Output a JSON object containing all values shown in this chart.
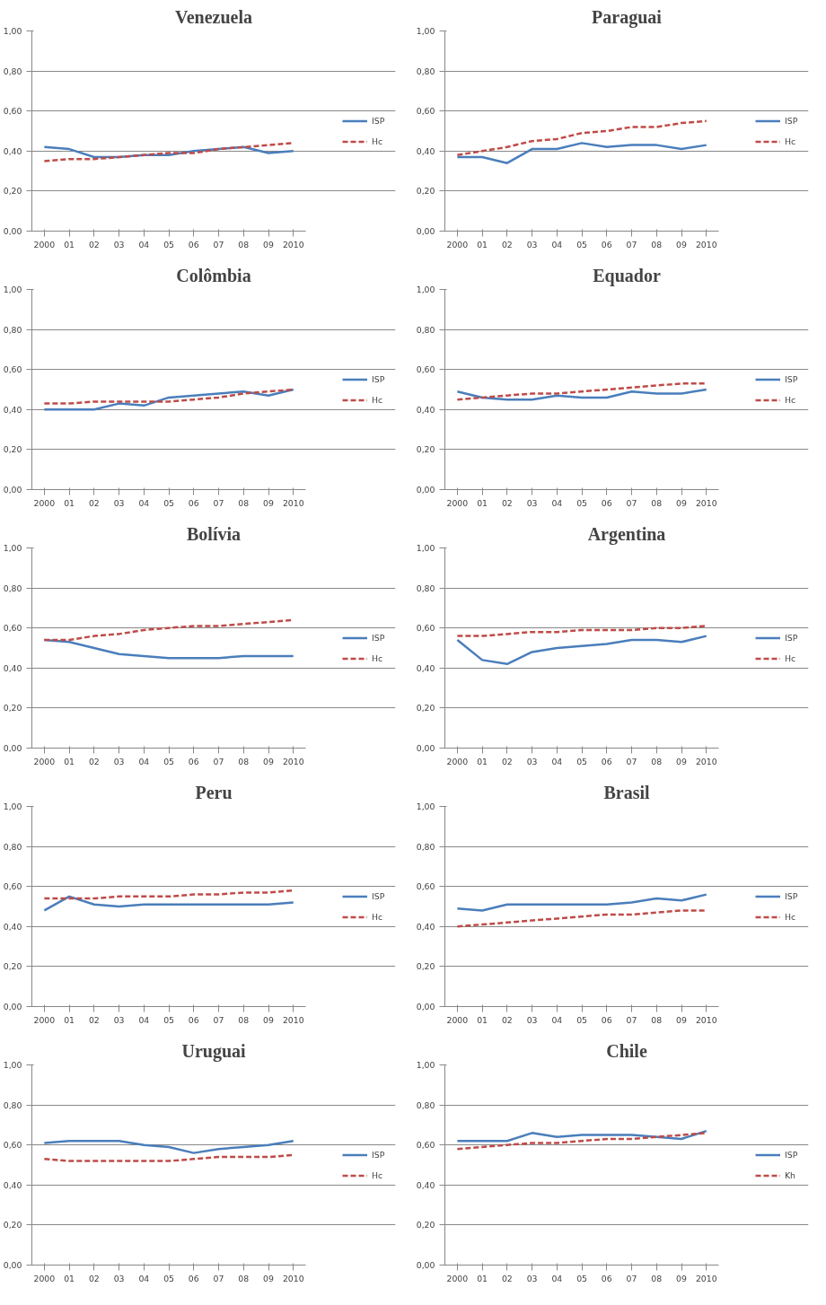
{
  "chart_data": [
    {
      "type": "line",
      "title": "Venezuela",
      "categories": [
        "2000",
        "01",
        "02",
        "03",
        "04",
        "05",
        "06",
        "07",
        "08",
        "09",
        "2010"
      ],
      "ylim": [
        0,
        1
      ],
      "yticks": [
        {
          "value": 0,
          "label": "0,00"
        },
        {
          "value": 0.2,
          "label": "0,20"
        },
        {
          "value": 0.4,
          "label": "0,40"
        },
        {
          "value": 0.6,
          "label": "0,60"
        },
        {
          "value": 0.8,
          "label": "0,80"
        },
        {
          "value": 1,
          "label": "1,00"
        }
      ],
      "grid": "y",
      "legend": "right",
      "series": [
        {
          "name": "ISP",
          "color": "#4a7ebb",
          "line_style": "solid",
          "values": [
            0.42,
            0.41,
            0.37,
            0.37,
            0.38,
            0.38,
            0.4,
            0.41,
            0.42,
            0.39,
            0.4
          ]
        },
        {
          "name": "Hc",
          "color": "#be4b48",
          "line_style": "dashed",
          "values": [
            0.35,
            0.36,
            0.36,
            0.37,
            0.38,
            0.39,
            0.39,
            0.41,
            0.42,
            0.43,
            0.44
          ]
        }
      ]
    },
    {
      "type": "line",
      "title": "Paraguai",
      "categories": [
        "2000",
        "01",
        "02",
        "03",
        "04",
        "05",
        "06",
        "07",
        "08",
        "09",
        "2010"
      ],
      "ylim": [
        0,
        1
      ],
      "yticks": [
        {
          "value": 0,
          "label": "0,00"
        },
        {
          "value": 0.2,
          "label": "0,20"
        },
        {
          "value": 0.4,
          "label": "0,40"
        },
        {
          "value": 0.6,
          "label": "0,60"
        },
        {
          "value": 0.8,
          "label": "0,80"
        },
        {
          "value": 1,
          "label": "1,00"
        }
      ],
      "grid": "y",
      "legend": "right",
      "series": [
        {
          "name": "ISP",
          "color": "#4a7ebb",
          "line_style": "solid",
          "values": [
            0.37,
            0.37,
            0.34,
            0.41,
            0.41,
            0.44,
            0.42,
            0.43,
            0.43,
            0.41,
            0.43
          ]
        },
        {
          "name": "Hc",
          "color": "#be4b48",
          "line_style": "dashed",
          "values": [
            0.38,
            0.4,
            0.42,
            0.45,
            0.46,
            0.49,
            0.5,
            0.52,
            0.52,
            0.54,
            0.55
          ]
        }
      ]
    },
    {
      "type": "line",
      "title": "Colômbia",
      "categories": [
        "2000",
        "01",
        "02",
        "03",
        "04",
        "05",
        "06",
        "07",
        "08",
        "09",
        "2010"
      ],
      "ylim": [
        0,
        1
      ],
      "yticks": [
        {
          "value": 0,
          "label": "0,00"
        },
        {
          "value": 0.2,
          "label": "0,20"
        },
        {
          "value": 0.4,
          "label": "0,40"
        },
        {
          "value": 0.6,
          "label": "0,60"
        },
        {
          "value": 0.8,
          "label": "0,80"
        },
        {
          "value": 1,
          "label": "1,00"
        }
      ],
      "grid": "y",
      "legend": "right",
      "series": [
        {
          "name": "ISP",
          "color": "#4a7ebb",
          "line_style": "solid",
          "values": [
            0.4,
            0.4,
            0.4,
            0.43,
            0.42,
            0.46,
            0.47,
            0.48,
            0.49,
            0.47,
            0.5
          ]
        },
        {
          "name": "Hc",
          "color": "#be4b48",
          "line_style": "dashed",
          "values": [
            0.43,
            0.43,
            0.44,
            0.44,
            0.44,
            0.44,
            0.45,
            0.46,
            0.48,
            0.49,
            0.5
          ]
        }
      ]
    },
    {
      "type": "line",
      "title": "Equador",
      "categories": [
        "2000",
        "01",
        "02",
        "03",
        "04",
        "05",
        "06",
        "07",
        "08",
        "09",
        "2010"
      ],
      "ylim": [
        0,
        1
      ],
      "yticks": [
        {
          "value": 0,
          "label": "0,00"
        },
        {
          "value": 0.2,
          "label": "0,20"
        },
        {
          "value": 0.4,
          "label": "0,40"
        },
        {
          "value": 0.6,
          "label": "0,60"
        },
        {
          "value": 0.8,
          "label": "0,80"
        },
        {
          "value": 1,
          "label": "1,00"
        }
      ],
      "grid": "y",
      "legend": "right",
      "series": [
        {
          "name": "ISP",
          "color": "#4a7ebb",
          "line_style": "solid",
          "values": [
            0.49,
            0.46,
            0.45,
            0.45,
            0.47,
            0.46,
            0.46,
            0.49,
            0.48,
            0.48,
            0.5
          ]
        },
        {
          "name": "Hc",
          "color": "#be4b48",
          "line_style": "dashed",
          "values": [
            0.45,
            0.46,
            0.47,
            0.48,
            0.48,
            0.49,
            0.5,
            0.51,
            0.52,
            0.53,
            0.53
          ]
        }
      ]
    },
    {
      "type": "line",
      "title": "Bolívia",
      "categories": [
        "2000",
        "01",
        "02",
        "03",
        "04",
        "05",
        "06",
        "07",
        "08",
        "09",
        "2010"
      ],
      "ylim": [
        0,
        1
      ],
      "yticks": [
        {
          "value": 0,
          "label": "0,00"
        },
        {
          "value": 0.2,
          "label": "0,20"
        },
        {
          "value": 0.4,
          "label": "0,40"
        },
        {
          "value": 0.6,
          "label": "0,60"
        },
        {
          "value": 0.8,
          "label": "0,80"
        },
        {
          "value": 1,
          "label": "1,00"
        }
      ],
      "grid": "y",
      "legend": "right",
      "series": [
        {
          "name": "ISP",
          "color": "#4a7ebb",
          "line_style": "solid",
          "values": [
            0.54,
            0.53,
            0.5,
            0.47,
            0.46,
            0.45,
            0.45,
            0.45,
            0.46,
            0.46,
            0.46
          ]
        },
        {
          "name": "Hc",
          "color": "#be4b48",
          "line_style": "dashed",
          "values": [
            0.54,
            0.54,
            0.56,
            0.57,
            0.59,
            0.6,
            0.61,
            0.61,
            0.62,
            0.63,
            0.64
          ]
        }
      ]
    },
    {
      "type": "line",
      "title": "Argentina",
      "categories": [
        "2000",
        "01",
        "02",
        "03",
        "04",
        "05",
        "06",
        "07",
        "08",
        "09",
        "2010"
      ],
      "ylim": [
        0,
        1
      ],
      "yticks": [
        {
          "value": 0,
          "label": "0,00"
        },
        {
          "value": 0.2,
          "label": "0,20"
        },
        {
          "value": 0.4,
          "label": "0,40"
        },
        {
          "value": 0.6,
          "label": "0,60"
        },
        {
          "value": 0.8,
          "label": "0,80"
        },
        {
          "value": 1,
          "label": "1,00"
        }
      ],
      "grid": "y",
      "legend": "right",
      "series": [
        {
          "name": "ISP",
          "color": "#4a7ebb",
          "line_style": "solid",
          "values": [
            0.54,
            0.44,
            0.42,
            0.48,
            0.5,
            0.51,
            0.52,
            0.54,
            0.54,
            0.53,
            0.56
          ]
        },
        {
          "name": "Hc",
          "color": "#be4b48",
          "line_style": "dashed",
          "values": [
            0.56,
            0.56,
            0.57,
            0.58,
            0.58,
            0.59,
            0.59,
            0.59,
            0.6,
            0.6,
            0.61
          ]
        }
      ]
    },
    {
      "type": "line",
      "title": "Peru",
      "categories": [
        "2000",
        "01",
        "02",
        "03",
        "04",
        "05",
        "06",
        "07",
        "08",
        "09",
        "2010"
      ],
      "ylim": [
        0,
        1
      ],
      "yticks": [
        {
          "value": 0,
          "label": "0,00"
        },
        {
          "value": 0.2,
          "label": "0,20"
        },
        {
          "value": 0.4,
          "label": "0,40"
        },
        {
          "value": 0.6,
          "label": "0,60"
        },
        {
          "value": 0.8,
          "label": "0,80"
        },
        {
          "value": 1,
          "label": "1,00"
        }
      ],
      "grid": "y",
      "legend": "right",
      "series": [
        {
          "name": "ISP",
          "color": "#4a7ebb",
          "line_style": "solid",
          "values": [
            0.48,
            0.55,
            0.51,
            0.5,
            0.51,
            0.51,
            0.51,
            0.51,
            0.51,
            0.51,
            0.52
          ]
        },
        {
          "name": "Hc",
          "color": "#be4b48",
          "line_style": "dashed",
          "values": [
            0.54,
            0.54,
            0.54,
            0.55,
            0.55,
            0.55,
            0.56,
            0.56,
            0.57,
            0.57,
            0.58
          ]
        }
      ]
    },
    {
      "type": "line",
      "title": "Brasil",
      "categories": [
        "2000",
        "01",
        "02",
        "03",
        "04",
        "05",
        "06",
        "07",
        "08",
        "09",
        "2010"
      ],
      "ylim": [
        0,
        1
      ],
      "yticks": [
        {
          "value": 0,
          "label": "0,00"
        },
        {
          "value": 0.2,
          "label": "0,20"
        },
        {
          "value": 0.4,
          "label": "0,40"
        },
        {
          "value": 0.6,
          "label": "0,60"
        },
        {
          "value": 0.8,
          "label": "0,80"
        },
        {
          "value": 1,
          "label": "1,00"
        }
      ],
      "grid": "y",
      "legend": "right",
      "series": [
        {
          "name": "ISP",
          "color": "#4a7ebb",
          "line_style": "solid",
          "values": [
            0.49,
            0.48,
            0.51,
            0.51,
            0.51,
            0.51,
            0.51,
            0.52,
            0.54,
            0.53,
            0.56
          ]
        },
        {
          "name": "Hc",
          "color": "#be4b48",
          "line_style": "dashed",
          "values": [
            0.4,
            0.41,
            0.42,
            0.43,
            0.44,
            0.45,
            0.46,
            0.46,
            0.47,
            0.48,
            0.48
          ]
        }
      ]
    },
    {
      "type": "line",
      "title": "Uruguai",
      "categories": [
        "2000",
        "01",
        "02",
        "03",
        "04",
        "05",
        "06",
        "07",
        "08",
        "09",
        "2010"
      ],
      "ylim": [
        0,
        1
      ],
      "yticks": [
        {
          "value": 0,
          "label": "0,00"
        },
        {
          "value": 0.2,
          "label": "0,20"
        },
        {
          "value": 0.4,
          "label": "0,40"
        },
        {
          "value": 0.6,
          "label": "0,60"
        },
        {
          "value": 0.8,
          "label": "0,80"
        },
        {
          "value": 1,
          "label": "1,00"
        }
      ],
      "grid": "y",
      "legend": "right",
      "series": [
        {
          "name": "ISP",
          "color": "#4a7ebb",
          "line_style": "solid",
          "values": [
            0.61,
            0.62,
            0.62,
            0.62,
            0.6,
            0.59,
            0.56,
            0.58,
            0.59,
            0.6,
            0.62
          ]
        },
        {
          "name": "Hc",
          "color": "#be4b48",
          "line_style": "dashed",
          "values": [
            0.53,
            0.52,
            0.52,
            0.52,
            0.52,
            0.52,
            0.53,
            0.54,
            0.54,
            0.54,
            0.55
          ]
        }
      ]
    },
    {
      "type": "line",
      "title": "Chile",
      "categories": [
        "2000",
        "01",
        "02",
        "03",
        "04",
        "05",
        "06",
        "07",
        "08",
        "09",
        "2010"
      ],
      "ylim": [
        0,
        1
      ],
      "yticks": [
        {
          "value": 0,
          "label": "0,00"
        },
        {
          "value": 0.2,
          "label": "0,20"
        },
        {
          "value": 0.4,
          "label": "0,40"
        },
        {
          "value": 0.6,
          "label": "0,60"
        },
        {
          "value": 0.8,
          "label": "0,80"
        },
        {
          "value": 1,
          "label": "1,00"
        }
      ],
      "grid": "y",
      "legend": "right",
      "series": [
        {
          "name": "ISP",
          "color": "#4a7ebb",
          "line_style": "solid",
          "values": [
            0.62,
            0.62,
            0.62,
            0.66,
            0.64,
            0.65,
            0.65,
            0.65,
            0.64,
            0.63,
            0.67
          ]
        },
        {
          "name": "Kh",
          "color": "#be4b48",
          "line_style": "dashed",
          "values": [
            0.58,
            0.59,
            0.6,
            0.61,
            0.61,
            0.62,
            0.63,
            0.63,
            0.64,
            0.65,
            0.66
          ]
        }
      ]
    }
  ]
}
